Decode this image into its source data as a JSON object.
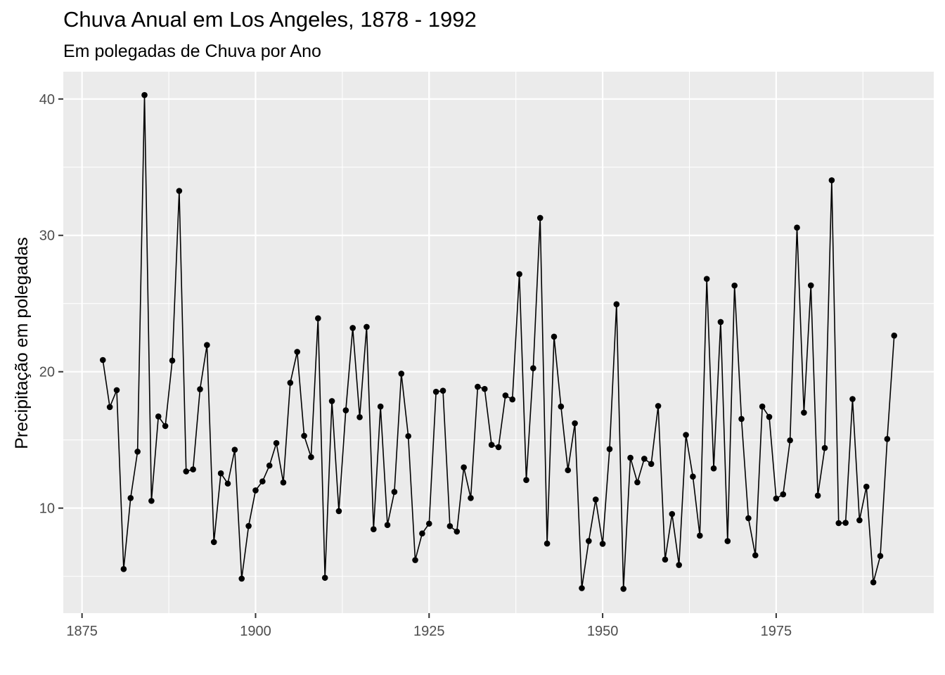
{
  "chart_data": {
    "type": "line",
    "title": "Chuva Anual em Los Angeles, 1878 - 1992",
    "subtitle": "Em polegadas de Chuva por Ano",
    "xlabel": "",
    "ylabel": "Precipitação em polegadas",
    "xlim": [
      1872.3,
      1997.7
    ],
    "ylim": [
      2.3,
      42.0
    ],
    "xticks": [
      1875,
      1900,
      1925,
      1950,
      1975
    ],
    "yticks": [
      10,
      20,
      30,
      40
    ],
    "grid": true,
    "legend": "none",
    "colors": {
      "panel": "#EBEBEB",
      "grid": "#FFFFFF",
      "line": "#000000",
      "point": "#000000",
      "tick_text": "#4D4D4D",
      "tick": "#333333"
    },
    "x": [
      1878,
      1879,
      1880,
      1881,
      1882,
      1883,
      1884,
      1885,
      1886,
      1887,
      1888,
      1889,
      1890,
      1891,
      1892,
      1893,
      1894,
      1895,
      1896,
      1897,
      1898,
      1899,
      1900,
      1901,
      1902,
      1903,
      1904,
      1905,
      1906,
      1907,
      1908,
      1909,
      1910,
      1911,
      1912,
      1913,
      1914,
      1915,
      1916,
      1917,
      1918,
      1919,
      1920,
      1921,
      1922,
      1923,
      1924,
      1925,
      1926,
      1927,
      1928,
      1929,
      1930,
      1931,
      1932,
      1933,
      1934,
      1935,
      1936,
      1937,
      1938,
      1939,
      1940,
      1941,
      1942,
      1943,
      1944,
      1945,
      1946,
      1947,
      1948,
      1949,
      1950,
      1951,
      1952,
      1953,
      1954,
      1955,
      1956,
      1957,
      1958,
      1959,
      1960,
      1961,
      1962,
      1963,
      1964,
      1965,
      1966,
      1967,
      1968,
      1969,
      1970,
      1971,
      1972,
      1973,
      1974,
      1975,
      1976,
      1977,
      1978,
      1979,
      1980,
      1981,
      1982,
      1983,
      1984,
      1985,
      1986,
      1987,
      1988,
      1989,
      1990,
      1991,
      1992
    ],
    "y": [
      20.86,
      17.41,
      18.65,
      5.53,
      10.74,
      14.14,
      40.29,
      10.53,
      16.72,
      16.02,
      20.82,
      33.26,
      12.69,
      12.84,
      18.72,
      21.96,
      7.51,
      12.55,
      11.8,
      14.28,
      4.83,
      8.69,
      11.3,
      11.96,
      13.12,
      14.77,
      11.88,
      19.19,
      21.46,
      15.3,
      13.74,
      23.92,
      4.89,
      17.85,
      9.78,
      17.17,
      23.21,
      16.67,
      23.29,
      8.45,
      17.45,
      8.76,
      11.19,
      19.86,
      15.28,
      6.19,
      8.14,
      8.86,
      18.53,
      18.61,
      8.68,
      8.28,
      12.99,
      10.74,
      18.9,
      18.74,
      14.64,
      14.47,
      18.26,
      17.97,
      27.16,
      12.06,
      20.26,
      31.28,
      7.4,
      22.57,
      17.45,
      12.78,
      16.22,
      4.13,
      7.59,
      10.63,
      7.38,
      14.33,
      24.95,
      4.08,
      13.69,
      11.89,
      13.62,
      13.24,
      17.49,
      6.23,
      9.57,
      5.83,
      15.37,
      12.31,
      7.98,
      26.81,
      12.91,
      23.65,
      7.58,
      26.32,
      16.54,
      9.26,
      6.54,
      17.45,
      16.69,
      10.7,
      11.01,
      14.97,
      30.57,
      17.0,
      26.33,
      10.92,
      14.41,
      34.04,
      8.9,
      8.92,
      18.0,
      9.11,
      11.57,
      4.56,
      6.49,
      15.07,
      22.65
    ]
  }
}
